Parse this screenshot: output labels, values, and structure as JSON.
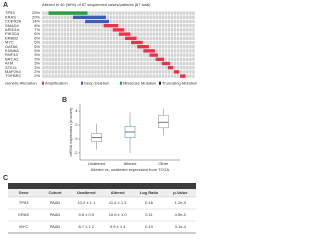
{
  "panel_a": {
    "letter": "A",
    "header": "Altered in 40 (46%) of 87 sequenced cases/patients (87 total)",
    "total_columns": 50,
    "rows": [
      {
        "gene": "TP53",
        "pct": "25%",
        "type": "mut",
        "cols": [
          2,
          14
        ]
      },
      {
        "gene": "KRAS",
        "pct": "20%",
        "type": "del",
        "cols": [
          10,
          20
        ]
      },
      {
        "gene": "CDKN2A",
        "pct": "14%",
        "type": "del",
        "cols": [
          14,
          21
        ]
      },
      {
        "gene": "SMAD4",
        "pct": "8%",
        "type": "amp",
        "cols": [
          20,
          24
        ]
      },
      {
        "gene": "ARID1A",
        "pct": "7%",
        "type": "amp",
        "cols": [
          23,
          26
        ]
      },
      {
        "gene": "PIK3CA",
        "pct": "6%",
        "type": "amp",
        "cols": [
          25,
          28
        ]
      },
      {
        "gene": "ERBB2",
        "pct": "6%",
        "type": "amp",
        "cols": [
          27,
          30
        ]
      },
      {
        "gene": "MYC",
        "pct": "5%",
        "type": "amp",
        "cols": [
          29,
          32
        ]
      },
      {
        "gene": "GATA6",
        "pct": "5%",
        "type": "amp",
        "cols": [
          31,
          34
        ]
      },
      {
        "gene": "KDM6A",
        "pct": "5%",
        "type": "amp",
        "cols": [
          33,
          36
        ]
      },
      {
        "gene": "RNF43",
        "pct": "3%",
        "type": "amp",
        "cols": [
          35,
          37
        ]
      },
      {
        "gene": "BRCA2",
        "pct": "3%",
        "type": "amp",
        "cols": [
          37,
          39
        ]
      },
      {
        "gene": "ATM",
        "pct": "3%",
        "type": "amp",
        "cols": [
          39,
          41
        ]
      },
      {
        "gene": "STK11",
        "pct": "2%",
        "type": "amp",
        "cols": [
          41,
          42
        ]
      },
      {
        "gene": "MAP2K4",
        "pct": "2%",
        "type": "amp",
        "cols": [
          43,
          44
        ]
      },
      {
        "gene": "TGFBR2",
        "pct": "2%",
        "type": "amp",
        "cols": [
          45,
          46
        ]
      }
    ],
    "legend_title": "Genetic Alteration",
    "legend": [
      {
        "type": "amp",
        "label": "Amplification"
      },
      {
        "type": "del",
        "label": "Deep Deletion"
      },
      {
        "type": "mut",
        "label": "Missense Mutation"
      },
      {
        "type": "trunc",
        "label": "Truncating Mutation"
      }
    ]
  },
  "panel_b": {
    "letter": "B",
    "y_label": "mRNA expression (z-score)",
    "x_caption": "Altered vs. unaltered expression from TCGA",
    "ylim": [
      -3,
      5
    ],
    "yticks": [
      -2,
      0,
      2,
      4
    ],
    "groups": [
      {
        "name": "Unaltered",
        "min": -1.5,
        "q1": -0.4,
        "median": 0.2,
        "q3": 0.8,
        "max": 2.2
      },
      {
        "name": "Altered",
        "min": -2.0,
        "q1": 0.2,
        "median": 1.0,
        "q3": 1.8,
        "max": 3.8
      },
      {
        "name": "Other",
        "min": 0.5,
        "q1": 1.6,
        "median": 2.4,
        "q3": 3.4,
        "max": 4.3
      }
    ]
  },
  "panel_c": {
    "letter": "C",
    "title": "Comparison of expression levels",
    "columns": [
      "Gene",
      "Cohort",
      "Unaltered",
      "Altered",
      "Log Ratio",
      "p-Value"
    ],
    "rows": [
      [
        "TP53",
        "PAAD",
        "10.2 ± 1.1",
        "11.4 ± 1.3",
        "0.16",
        "1.2e-3"
      ],
      [
        "KRAS",
        "PAAD",
        "9.8 ± 0.9",
        "10.6 ± 1.0",
        "0.11",
        "4.5e-2"
      ],
      [
        "MYC",
        "PAAD",
        "8.7 ± 1.2",
        "9.9 ± 1.4",
        "0.19",
        "3.1e-4"
      ]
    ]
  }
}
